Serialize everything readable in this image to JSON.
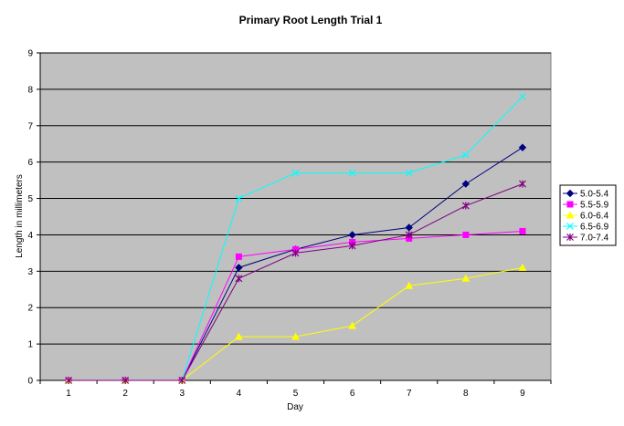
{
  "chart_data": {
    "type": "line",
    "title": "Primary Root Length Trial 1",
    "xlabel": "Day",
    "ylabel": "Length in millimeters",
    "x": [
      1,
      2,
      3,
      4,
      5,
      6,
      7,
      8,
      9
    ],
    "ylim": [
      0,
      9
    ],
    "yticks": [
      0,
      1,
      2,
      3,
      4,
      5,
      6,
      7,
      8,
      9
    ],
    "grid": true,
    "legend_position": "right",
    "plot_background": "#c0c0c0",
    "series": [
      {
        "name": "5.0-5.4",
        "color": "#000080",
        "marker": "diamond",
        "values": [
          0,
          0,
          0,
          3.1,
          3.6,
          4.0,
          4.2,
          5.4,
          6.4
        ]
      },
      {
        "name": "5.5-5.9",
        "color": "#ff00ff",
        "marker": "square",
        "values": [
          0,
          0,
          0,
          3.4,
          3.6,
          3.8,
          3.9,
          4.0,
          4.1
        ]
      },
      {
        "name": "6.0-6.4",
        "color": "#ffff00",
        "marker": "triangle",
        "values": [
          0,
          0,
          0,
          1.2,
          1.2,
          1.5,
          2.6,
          2.8,
          3.1
        ]
      },
      {
        "name": "6.5-6.9",
        "color": "#00ffff",
        "marker": "x",
        "values": [
          0,
          0,
          0,
          5.0,
          5.7,
          5.7,
          5.7,
          6.2,
          7.8
        ]
      },
      {
        "name": "7.0-7.4",
        "color": "#800080",
        "marker": "star",
        "values": [
          0,
          0,
          0,
          2.8,
          3.5,
          3.7,
          4.0,
          4.8,
          5.4
        ]
      }
    ]
  }
}
